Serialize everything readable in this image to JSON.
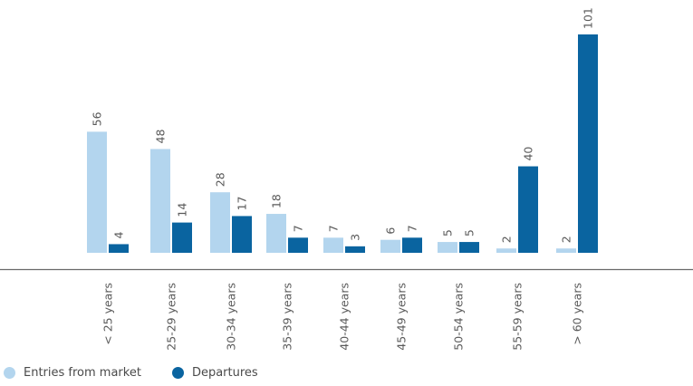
{
  "chart_data": {
    "type": "bar",
    "categories": [
      "< 25 years",
      "25-29 years",
      "30-34 years",
      "35-39 years",
      "40-44 years",
      "45-49 years",
      "50-54 years",
      "55-59 years",
      "> 60 years"
    ],
    "series": [
      {
        "name": "Entries from market",
        "color": "#b3d5ee",
        "values": [
          56,
          48,
          28,
          18,
          7,
          6,
          5,
          2,
          2
        ]
      },
      {
        "name": "Departures",
        "color": "#0a64a0",
        "values": [
          4,
          14,
          17,
          7,
          3,
          7,
          5,
          40,
          101
        ]
      }
    ],
    "title": "",
    "xlabel": "",
    "ylabel": "",
    "ylim": [
      0,
      101
    ],
    "grid": false,
    "data_labels": true,
    "legend_position": "bottom-left"
  },
  "legend": {
    "items": [
      {
        "label": "Entries from market",
        "color": "#b3d5ee"
      },
      {
        "label": "Departures",
        "color": "#0a64a0"
      }
    ]
  }
}
